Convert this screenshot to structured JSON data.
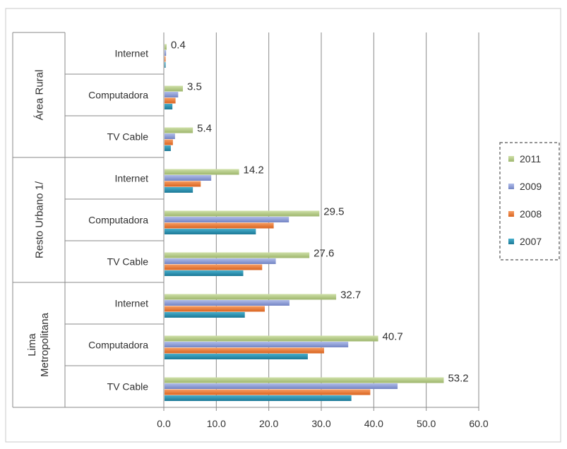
{
  "chart_data": {
    "type": "bar",
    "orientation": "horizontal",
    "xlim": [
      0,
      60
    ],
    "x_ticks": [
      "0.0",
      "10.0",
      "20.0",
      "30.0",
      "40.0",
      "50.0",
      "60.0"
    ],
    "x_tick_values": [
      0,
      10,
      20,
      30,
      40,
      50,
      60
    ],
    "grid": true,
    "legend_position": "right",
    "groups": [
      {
        "name": "Área Rural",
        "categories": [
          {
            "label": "Internet",
            "values": {
              "2011": 0.4,
              "2009": 0.3,
              "2008": 0.2,
              "2007": 0.1
            },
            "data_label": "0.4"
          },
          {
            "label": "Computadora",
            "values": {
              "2011": 3.5,
              "2009": 2.6,
              "2008": 2.1,
              "2007": 1.5
            },
            "data_label": "3.5"
          },
          {
            "label": "TV Cable",
            "values": {
              "2011": 5.4,
              "2009": 2.0,
              "2008": 1.6,
              "2007": 1.2
            },
            "data_label": "5.4"
          }
        ]
      },
      {
        "name": "Resto Urbano 1/",
        "categories": [
          {
            "label": "Internet",
            "values": {
              "2011": 14.2,
              "2009": 8.9,
              "2008": 6.9,
              "2007": 5.4
            },
            "data_label": "14.2"
          },
          {
            "label": "Computadora",
            "values": {
              "2011": 29.5,
              "2009": 23.7,
              "2008": 20.8,
              "2007": 17.4
            },
            "data_label": "29.5"
          },
          {
            "label": "TV Cable",
            "values": {
              "2011": 27.6,
              "2009": 21.2,
              "2008": 18.6,
              "2007": 15.0
            },
            "data_label": "27.6"
          }
        ]
      },
      {
        "name": "Lima Metropolitana",
        "categories": [
          {
            "label": "Internet",
            "values": {
              "2011": 32.7,
              "2009": 23.8,
              "2008": 19.1,
              "2007": 15.3
            },
            "data_label": "32.7"
          },
          {
            "label": "Computadora",
            "values": {
              "2011": 40.7,
              "2009": 35.0,
              "2008": 30.4,
              "2007": 27.3
            },
            "data_label": "40.7"
          },
          {
            "label": "TV Cable",
            "values": {
              "2011": 53.2,
              "2009": 44.4,
              "2008": 39.2,
              "2007": 35.6
            },
            "data_label": "53.2"
          }
        ]
      }
    ],
    "series": [
      {
        "name": "2011",
        "color": "#b5cc86"
      },
      {
        "name": "2009",
        "color": "#8fa0d8"
      },
      {
        "name": "2008",
        "color": "#ef7d36"
      },
      {
        "name": "2007",
        "color": "#2f95b4"
      }
    ]
  }
}
